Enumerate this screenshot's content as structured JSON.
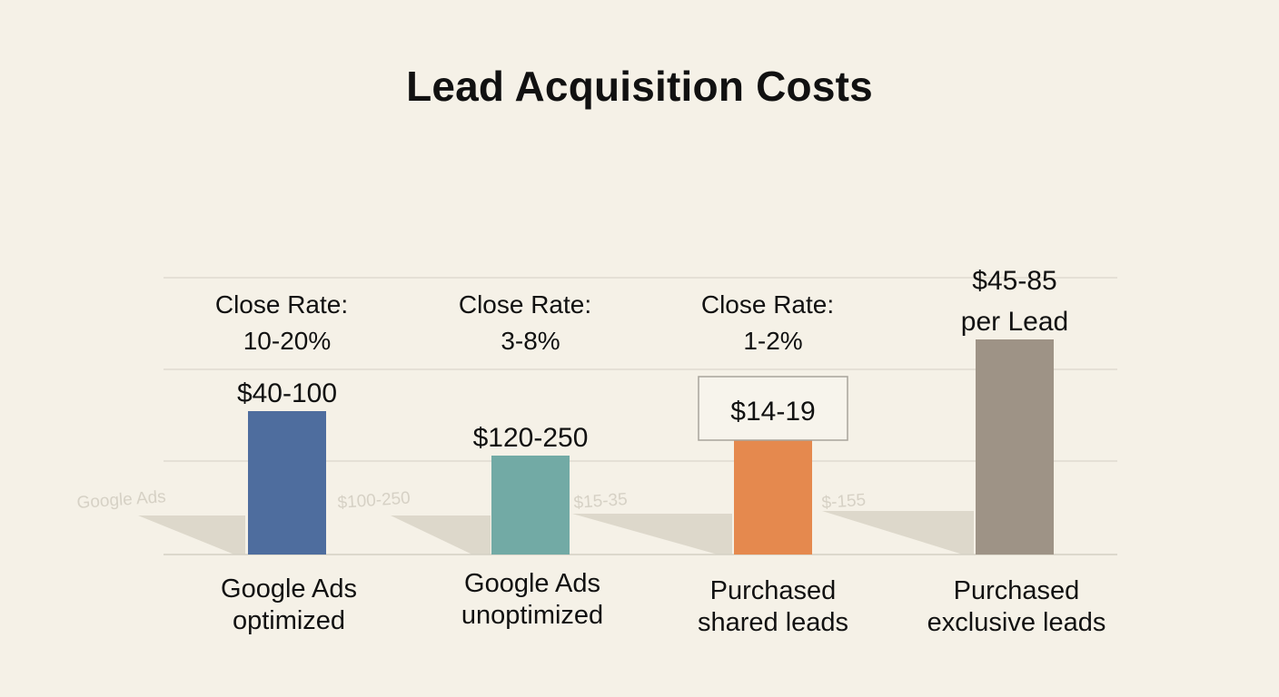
{
  "chart_data": {
    "type": "bar",
    "title": "Lead Acquisition Costs",
    "xlabel": "",
    "ylabel": "",
    "grid": true,
    "categories": [
      [
        "Google Ads",
        "optimized"
      ],
      [
        "Google Ads",
        "unoptimized"
      ],
      [
        "Purchased",
        "shared leads"
      ],
      [
        "Purchased",
        "exclusive leads"
      ]
    ],
    "values": [
      1.58,
      1.09,
      1.26,
      2.37
    ],
    "value_labels": [
      [
        "$40-100"
      ],
      [
        "$120-250"
      ],
      [
        "$14-19"
      ],
      [
        "$45-85",
        "per Lead"
      ]
    ],
    "close_rates": [
      [
        "Close Rate:",
        "10-20%"
      ],
      [
        "Close Rate:",
        "3-8%"
      ],
      [
        "Close Rate:",
        "1-2%"
      ],
      []
    ],
    "ghost_labels": [
      "Google Ads",
      "$100-250",
      "$15-35",
      "$-155"
    ],
    "colors": [
      "#4e6d9e",
      "#72aaa5",
      "#e5894e",
      "#9e9386"
    ],
    "boxed_value_label_index": 2
  }
}
